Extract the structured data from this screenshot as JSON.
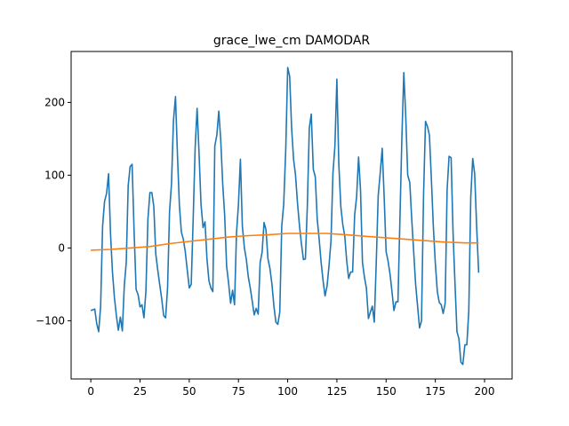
{
  "chart_data": {
    "type": "line",
    "title": "grace_lwe_cm DAMODAR",
    "xlabel": "",
    "ylabel": "",
    "xlim": [
      -10,
      214
    ],
    "ylim": [
      -180,
      270
    ],
    "x_ticks": [
      0,
      25,
      50,
      75,
      100,
      125,
      150,
      175,
      200
    ],
    "y_ticks": [
      -100,
      0,
      100,
      200
    ],
    "grid": false,
    "series": [
      {
        "color": "#1f77b4",
        "points": [
          [
            0,
            -86
          ],
          [
            2,
            -84
          ],
          [
            3,
            -104
          ],
          [
            4,
            -115
          ],
          [
            5,
            -80
          ],
          [
            6,
            30
          ],
          [
            7,
            64
          ],
          [
            8,
            75
          ],
          [
            9,
            102
          ],
          [
            10,
            20
          ],
          [
            11,
            -33
          ],
          [
            12,
            -68
          ],
          [
            13,
            -93
          ],
          [
            14,
            -113
          ],
          [
            15,
            -95
          ],
          [
            16,
            -114
          ],
          [
            17,
            -52
          ],
          [
            18,
            -20
          ],
          [
            19,
            86
          ],
          [
            20,
            112
          ],
          [
            21,
            115
          ],
          [
            22,
            20
          ],
          [
            23,
            -57
          ],
          [
            24,
            -64
          ],
          [
            25,
            -81
          ],
          [
            26,
            -78
          ],
          [
            27,
            -96
          ],
          [
            28,
            -60
          ],
          [
            29,
            40
          ],
          [
            30,
            76
          ],
          [
            31,
            76
          ],
          [
            32,
            57
          ],
          [
            33,
            -8
          ],
          [
            34,
            -30
          ],
          [
            35,
            -50
          ],
          [
            36,
            -70
          ],
          [
            37,
            -93
          ],
          [
            38,
            -96
          ],
          [
            39,
            -54
          ],
          [
            40,
            50
          ],
          [
            41,
            88
          ],
          [
            42,
            175
          ],
          [
            43,
            208
          ],
          [
            44,
            128
          ],
          [
            45,
            58
          ],
          [
            46,
            22
          ],
          [
            47,
            12
          ],
          [
            48,
            -5
          ],
          [
            49,
            -30
          ],
          [
            50,
            -55
          ],
          [
            51,
            -50
          ],
          [
            52,
            40
          ],
          [
            53,
            138
          ],
          [
            54,
            192
          ],
          [
            55,
            130
          ],
          [
            56,
            60
          ],
          [
            57,
            28
          ],
          [
            58,
            36
          ],
          [
            59,
            -15
          ],
          [
            60,
            -45
          ],
          [
            61,
            -55
          ],
          [
            62,
            -60
          ],
          [
            63,
            140
          ],
          [
            64,
            155
          ],
          [
            65,
            188
          ],
          [
            66,
            148
          ],
          [
            67,
            88
          ],
          [
            68,
            45
          ],
          [
            69,
            -25
          ],
          [
            70,
            -48
          ],
          [
            71,
            -76
          ],
          [
            72,
            -58
          ],
          [
            73,
            -78
          ],
          [
            74,
            20
          ],
          [
            75,
            60
          ],
          [
            76,
            122
          ],
          [
            77,
            30
          ],
          [
            78,
            0
          ],
          [
            79,
            -16
          ],
          [
            80,
            -40
          ],
          [
            81,
            -55
          ],
          [
            82,
            -73
          ],
          [
            83,
            -92
          ],
          [
            84,
            -83
          ],
          [
            85,
            -91
          ],
          [
            86,
            -20
          ],
          [
            87,
            -6
          ],
          [
            88,
            35
          ],
          [
            89,
            25
          ],
          [
            90,
            -15
          ],
          [
            91,
            -28
          ],
          [
            92,
            -50
          ],
          [
            93,
            -80
          ],
          [
            94,
            -102
          ],
          [
            95,
            -105
          ],
          [
            96,
            -88
          ],
          [
            97,
            30
          ],
          [
            98,
            60
          ],
          [
            99,
            135
          ],
          [
            100,
            248
          ],
          [
            101,
            236
          ],
          [
            102,
            165
          ],
          [
            103,
            122
          ],
          [
            104,
            100
          ],
          [
            105,
            62
          ],
          [
            106,
            30
          ],
          [
            107,
            5
          ],
          [
            108,
            -16
          ],
          [
            109,
            -15
          ],
          [
            110,
            58
          ],
          [
            111,
            165
          ],
          [
            112,
            184
          ],
          [
            113,
            108
          ],
          [
            114,
            98
          ],
          [
            115,
            40
          ],
          [
            116,
            12
          ],
          [
            117,
            -20
          ],
          [
            118,
            -45
          ],
          [
            119,
            -66
          ],
          [
            120,
            -52
          ],
          [
            121,
            -24
          ],
          [
            122,
            10
          ],
          [
            123,
            103
          ],
          [
            124,
            140
          ],
          [
            125,
            232
          ],
          [
            126,
            115
          ],
          [
            127,
            56
          ],
          [
            128,
            32
          ],
          [
            129,
            16
          ],
          [
            130,
            -18
          ],
          [
            131,
            -42
          ],
          [
            132,
            -33
          ],
          [
            133,
            -33
          ],
          [
            134,
            45
          ],
          [
            135,
            70
          ],
          [
            136,
            125
          ],
          [
            137,
            80
          ],
          [
            138,
            -20
          ],
          [
            139,
            -40
          ],
          [
            140,
            -55
          ],
          [
            141,
            -97
          ],
          [
            142,
            -88
          ],
          [
            143,
            -80
          ],
          [
            144,
            -102
          ],
          [
            145,
            -20
          ],
          [
            146,
            72
          ],
          [
            147,
            102
          ],
          [
            148,
            137
          ],
          [
            149,
            70
          ],
          [
            150,
            -5
          ],
          [
            151,
            -18
          ],
          [
            152,
            -36
          ],
          [
            153,
            -60
          ],
          [
            154,
            -86
          ],
          [
            155,
            -74
          ],
          [
            156,
            -74
          ],
          [
            157,
            38
          ],
          [
            158,
            150
          ],
          [
            159,
            241
          ],
          [
            160,
            180
          ],
          [
            161,
            100
          ],
          [
            162,
            90
          ],
          [
            163,
            40
          ],
          [
            164,
            -5
          ],
          [
            165,
            -50
          ],
          [
            166,
            -80
          ],
          [
            167,
            -110
          ],
          [
            168,
            -100
          ],
          [
            169,
            72
          ],
          [
            170,
            174
          ],
          [
            171,
            167
          ],
          [
            172,
            155
          ],
          [
            173,
            95
          ],
          [
            174,
            30
          ],
          [
            175,
            -20
          ],
          [
            176,
            -60
          ],
          [
            177,
            -75
          ],
          [
            178,
            -78
          ],
          [
            179,
            -90
          ],
          [
            180,
            -76
          ],
          [
            181,
            80
          ],
          [
            182,
            126
          ],
          [
            183,
            124
          ],
          [
            184,
            20
          ],
          [
            185,
            -50
          ],
          [
            186,
            -115
          ],
          [
            187,
            -125
          ],
          [
            188,
            -157
          ],
          [
            189,
            -160
          ],
          [
            190,
            -133
          ],
          [
            191,
            -133
          ],
          [
            192,
            -86
          ],
          [
            193,
            70
          ],
          [
            194,
            123
          ],
          [
            195,
            102
          ],
          [
            196,
            30
          ],
          [
            197,
            -34
          ]
        ]
      },
      {
        "color": "#ff7f0e",
        "points": [
          [
            0,
            -3
          ],
          [
            10,
            -2
          ],
          [
            20,
            0
          ],
          [
            30,
            2
          ],
          [
            40,
            6
          ],
          [
            50,
            9
          ],
          [
            60,
            12
          ],
          [
            70,
            15
          ],
          [
            80,
            17
          ],
          [
            90,
            18
          ],
          [
            100,
            20
          ],
          [
            110,
            20
          ],
          [
            120,
            20
          ],
          [
            130,
            18
          ],
          [
            140,
            16
          ],
          [
            150,
            14
          ],
          [
            160,
            12
          ],
          [
            170,
            10
          ],
          [
            180,
            8
          ],
          [
            190,
            7
          ],
          [
            197,
            7
          ]
        ]
      }
    ]
  }
}
